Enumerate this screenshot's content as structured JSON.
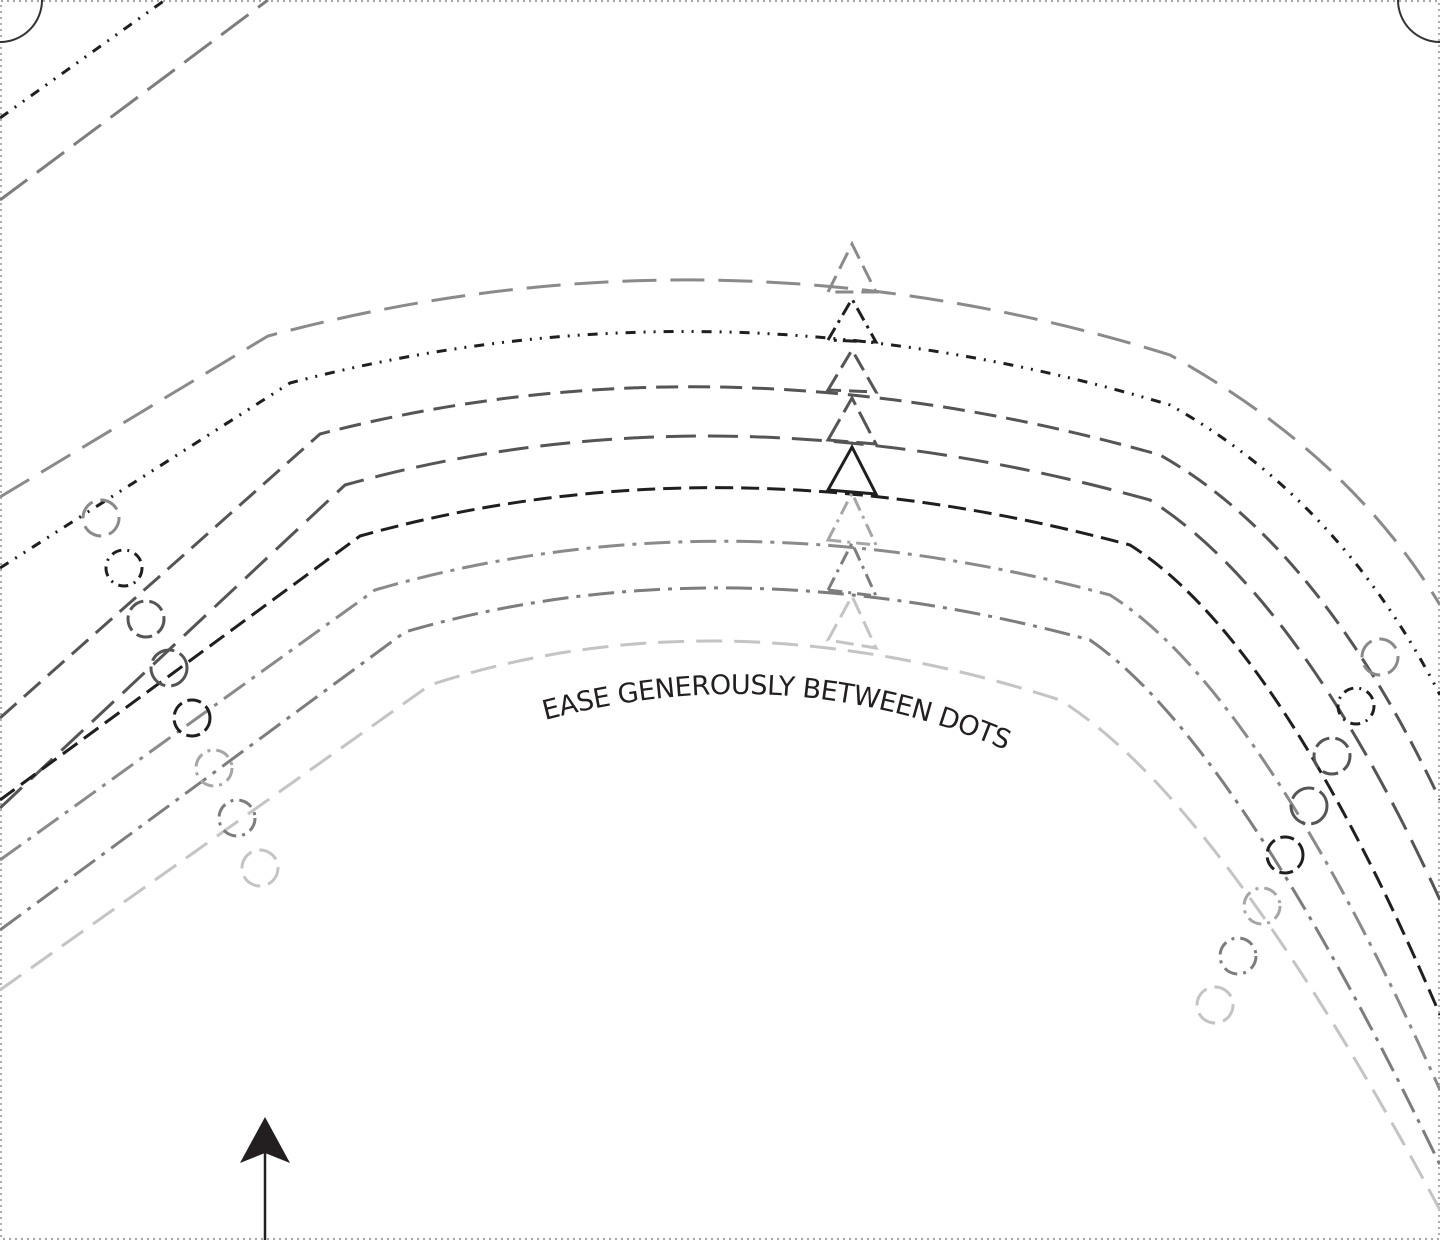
{
  "note": {
    "ease_text": "EASE GENEROUSLY BETWEEN DOTS"
  },
  "colors": {
    "black": "#1f1f1f",
    "dark_gray": "#555555",
    "mid_gray": "#7d7d7d",
    "light_gray": "#a6a6a6",
    "pale_gray": "#c4c4c4",
    "arrow": "#231f20"
  }
}
